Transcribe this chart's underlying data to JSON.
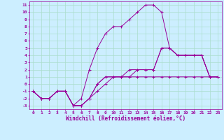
{
  "title": "Windchill (Refroidissement éolien,°C)",
  "background_color": "#cceeff",
  "line_color": "#990099",
  "grid_color": "#aaddcc",
  "xlim": [
    -0.5,
    23.5
  ],
  "ylim": [
    -3.5,
    11.5
  ],
  "xticks": [
    0,
    1,
    2,
    3,
    4,
    5,
    6,
    7,
    8,
    9,
    10,
    11,
    12,
    13,
    14,
    15,
    16,
    17,
    18,
    19,
    20,
    21,
    22,
    23
  ],
  "yticks": [
    -3,
    -2,
    -1,
    0,
    1,
    2,
    3,
    4,
    5,
    6,
    7,
    8,
    9,
    10,
    11
  ],
  "series": [
    {
      "x": [
        0,
        1,
        2,
        3,
        4,
        5,
        6,
        7,
        8,
        9,
        10,
        11,
        12,
        13,
        14,
        15,
        16,
        17,
        18,
        19,
        20,
        21,
        22,
        23
      ],
      "y": [
        -1,
        -2,
        -2,
        -1,
        -1,
        -3,
        -3,
        -2,
        -1,
        0,
        1,
        1,
        1,
        1,
        1,
        1,
        1,
        1,
        1,
        1,
        1,
        1,
        1,
        1
      ]
    },
    {
      "x": [
        0,
        1,
        2,
        3,
        4,
        5,
        6,
        7,
        8,
        9,
        10,
        11,
        12,
        13,
        14,
        15,
        16,
        17,
        18,
        19,
        20,
        21,
        22,
        23
      ],
      "y": [
        -1,
        -2,
        -2,
        -1,
        -1,
        -3,
        -2,
        2,
        5,
        7,
        8,
        8,
        9,
        10,
        11,
        11,
        10,
        5,
        4,
        4,
        4,
        4,
        1,
        1
      ]
    },
    {
      "x": [
        0,
        1,
        2,
        3,
        4,
        5,
        6,
        7,
        8,
        9,
        10,
        11,
        12,
        13,
        14,
        15,
        16,
        17,
        18,
        19,
        20,
        21,
        22,
        23
      ],
      "y": [
        -1,
        -2,
        -2,
        -1,
        -1,
        -3,
        -3,
        -2,
        0,
        1,
        1,
        1,
        2,
        2,
        2,
        2,
        5,
        5,
        4,
        4,
        4,
        4,
        1,
        1
      ]
    },
    {
      "x": [
        0,
        1,
        2,
        3,
        4,
        5,
        6,
        7,
        8,
        9,
        10,
        11,
        12,
        13,
        14,
        15,
        16,
        17,
        18,
        19,
        20,
        21,
        22,
        23
      ],
      "y": [
        -1,
        -2,
        -2,
        -1,
        -1,
        -3,
        -3,
        -2,
        0,
        1,
        1,
        1,
        1,
        2,
        2,
        2,
        5,
        5,
        4,
        4,
        4,
        4,
        1,
        1
      ]
    }
  ]
}
